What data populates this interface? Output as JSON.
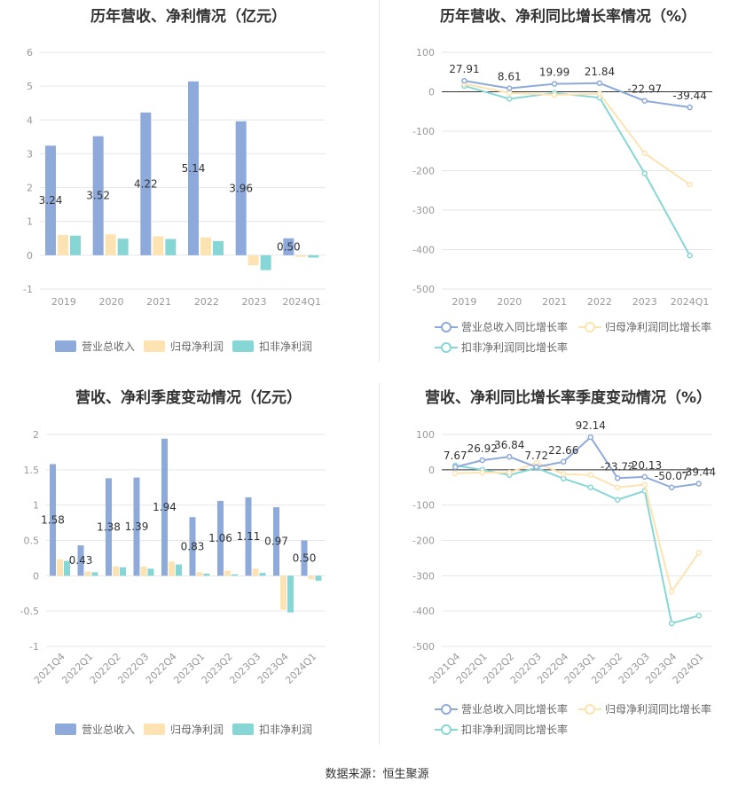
{
  "source": "数据来源：恒生聚源",
  "colors": {
    "revenue": "#8eaadb",
    "parent_profit": "#fde3b1",
    "deducted_profit": "#87d6d6",
    "grid": "#e6e6e6",
    "axis_text": "#999999",
    "label_text": "#333333"
  },
  "charts": [
    {
      "title": "历年营收、净利情况（亿元）",
      "chart_data": {
        "type": "bar",
        "categories": [
          "2019",
          "2020",
          "2021",
          "2022",
          "2023",
          "2024Q1"
        ],
        "series": [
          {
            "name": "营业总收入",
            "values": [
              3.24,
              3.52,
              4.22,
              5.14,
              3.96,
              0.5
            ]
          },
          {
            "name": "归母净利润",
            "values": [
              0.6,
              0.62,
              0.56,
              0.53,
              -0.3,
              -0.05
            ]
          },
          {
            "name": "扣非净利润",
            "values": [
              0.58,
              0.49,
              0.48,
              0.42,
              -0.44,
              -0.07
            ]
          }
        ],
        "data_labels": [
          "3.24",
          "3.52",
          "4.22",
          "5.14",
          "3.96",
          "0.50"
        ],
        "yticks": [
          "6",
          "5",
          "4",
          "3",
          "2",
          "1",
          "0",
          "-1"
        ],
        "ylim": [
          -1,
          6
        ],
        "grid": true,
        "legend_position": "bottom"
      }
    },
    {
      "title": "历年营收、净利同比增长率情况（%）",
      "chart_data": {
        "type": "line",
        "categories": [
          "2019",
          "2020",
          "2021",
          "2022",
          "2023",
          "2024Q1"
        ],
        "series": [
          {
            "name": "营业总收入同比增长率",
            "values": [
              27.91,
              8.61,
              19.99,
              21.84,
              -22.97,
              -39.44
            ]
          },
          {
            "name": "归母净利润同比增长率",
            "values": [
              20,
              -3,
              -8,
              -5,
              -156,
              -235
            ]
          },
          {
            "name": "扣非净利润同比增长率",
            "values": [
              15,
              -18,
              -3,
              -15,
              -207,
              -415
            ]
          }
        ],
        "data_labels": [
          "27.91",
          "8.61",
          "19.99",
          "21.84",
          "-22.97",
          "-39.44"
        ],
        "yticks": [
          "100",
          "0",
          "-100",
          "-200",
          "-300",
          "-400",
          "-500"
        ],
        "ylim": [
          -500,
          100
        ],
        "grid": true,
        "legend_position": "bottom"
      }
    },
    {
      "title": "营收、净利季度变动情况（亿元）",
      "chart_data": {
        "type": "bar",
        "categories": [
          "2021Q4",
          "2022Q1",
          "2022Q2",
          "2022Q3",
          "2022Q4",
          "2023Q1",
          "2023Q2",
          "2023Q3",
          "2023Q4",
          "2024Q1"
        ],
        "series": [
          {
            "name": "营业总收入",
            "values": [
              1.58,
              0.43,
              1.38,
              1.39,
              1.94,
              0.83,
              1.06,
              1.11,
              0.97,
              0.5
            ]
          },
          {
            "name": "归母净利润",
            "values": [
              0.23,
              0.06,
              0.13,
              0.13,
              0.2,
              0.05,
              0.07,
              0.1,
              -0.48,
              -0.05
            ]
          },
          {
            "name": "扣非净利润",
            "values": [
              0.21,
              0.05,
              0.12,
              0.1,
              0.16,
              0.03,
              0.02,
              0.04,
              -0.52,
              -0.07
            ]
          }
        ],
        "data_labels": [
          "1.58",
          "0.43",
          "1.38",
          "1.39",
          "1.94",
          "0.83",
          "1.06",
          "1.11",
          "0.97",
          "0.50"
        ],
        "yticks": [
          "2",
          "1.5",
          "1",
          "0.5",
          "0",
          "-0.5",
          "-1"
        ],
        "ylim": [
          -1,
          2
        ],
        "grid": true,
        "legend_position": "bottom"
      }
    },
    {
      "title": "营收、净利同比增长率季度变动情况（%）",
      "chart_data": {
        "type": "line",
        "categories": [
          "2021Q4",
          "2022Q1",
          "2022Q2",
          "2022Q3",
          "2022Q4",
          "2023Q1",
          "2023Q2",
          "2023Q3",
          "2023Q4",
          "2024Q1"
        ],
        "series": [
          {
            "name": "营业总收入同比增长率",
            "values": [
              7.67,
              26.92,
              36.84,
              7.72,
              22.66,
              92.14,
              -23.72,
              -20.13,
              -50.07,
              -39.44
            ]
          },
          {
            "name": "归母净利润同比增长率",
            "values": [
              -10,
              -8,
              -8,
              20,
              -12,
              -15,
              -50,
              -42,
              -345,
              -235
            ]
          },
          {
            "name": "扣非净利润同比增长率",
            "values": [
              12,
              0,
              -15,
              5,
              -25,
              -50,
              -85,
              -60,
              -435,
              -413
            ]
          }
        ],
        "data_labels": [
          "7.67",
          "26.92",
          "36.84",
          "7.72",
          "22.66",
          "92.14",
          "-23.72",
          "-20.13",
          "-50.07",
          "-39.44"
        ],
        "yticks": [
          "100",
          "0",
          "-100",
          "-200",
          "-300",
          "-400",
          "-500"
        ],
        "ylim": [
          -500,
          100
        ],
        "grid": true,
        "legend_position": "bottom"
      }
    }
  ]
}
